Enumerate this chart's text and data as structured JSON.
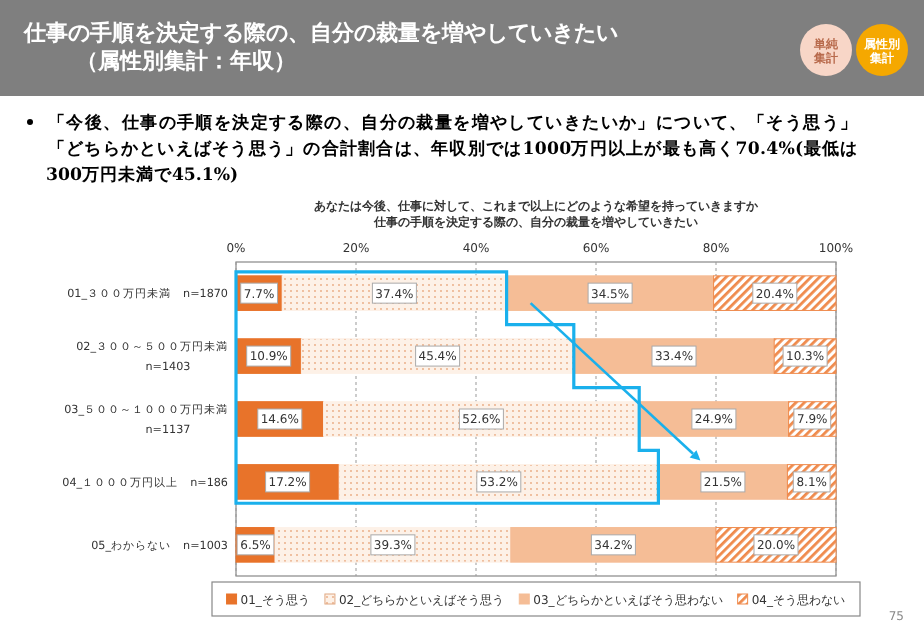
{
  "chart_data": {
    "type": "bar",
    "orientation": "horizontal",
    "stacked": true,
    "title": "仕事の手順を決定する際の、自分の裁量を増やしていきたい（属性別集計：年収）",
    "subtitle": "あなたは今後、仕事に対して、これまで以上にどのような希望を持っていきますか仕事の手順を決定する際の、自分の裁量を増やしていきたい",
    "annotations": [
      "「今後、仕事の手順を決定する際の、自分の裁量を増やしていきたいか」について、「そう思う」「どちらかといえばそう思う」の合計割合は、年収別では1000万円以上が最も高く70.4%(最低は300万円未満で45.1%)",
      "75",
      "単純集計",
      "属性別集計"
    ],
    "categories": [
      "01_３００万円未満　n=1870",
      "02_３００～５００万円未満\nn=1403",
      "03_５００～１０００万円未満\nn=1137",
      "04_１０００万円以上　n=186",
      "05_わからない　n=1003"
    ],
    "series": [
      {
        "name": "01_そう思う",
        "color": "#e8732a",
        "values": [
          7.7,
          10.9,
          14.6,
          17.2,
          6.5
        ],
        "value_labels": [
          "7.7%",
          "10.9%",
          "14.6%",
          "17.2%",
          "6.5%"
        ]
      },
      {
        "name": "02_どちらかといえばそう思う",
        "color": "#fdf1e7",
        "values": [
          37.4,
          45.4,
          52.6,
          53.2,
          39.3
        ],
        "value_labels": [
          "37.4%",
          "45.4%",
          "52.6%",
          "53.2%",
          "39.3%"
        ]
      },
      {
        "name": "03_どちらかといえばそう思わない",
        "color": "#f5bd96",
        "values": [
          34.5,
          33.4,
          24.9,
          21.5,
          34.2
        ],
        "value_labels": [
          "34.5%",
          "33.4%",
          "24.9%",
          "21.5%",
          "34.2%"
        ]
      },
      {
        "name": "04_そう思わない",
        "color": "#ef8a4c",
        "values": [
          20.4,
          10.3,
          7.9,
          8.1,
          20.0
        ],
        "value_labels": [
          "20.4%",
          "10.3%",
          "7.9%",
          "8.1%",
          "20.0%"
        ]
      }
    ],
    "xlim": [
      0,
      100
    ],
    "xticks": [
      {
        "value": 0,
        "label": "0%"
      },
      {
        "value": 20,
        "label": "20%"
      },
      {
        "value": 40,
        "label": "40%"
      },
      {
        "value": 60,
        "label": "60%"
      },
      {
        "value": 80,
        "label": "80%"
      },
      {
        "value": 100,
        "label": "100%"
      }
    ],
    "grid": "x",
    "legend": "bottom"
  }
}
